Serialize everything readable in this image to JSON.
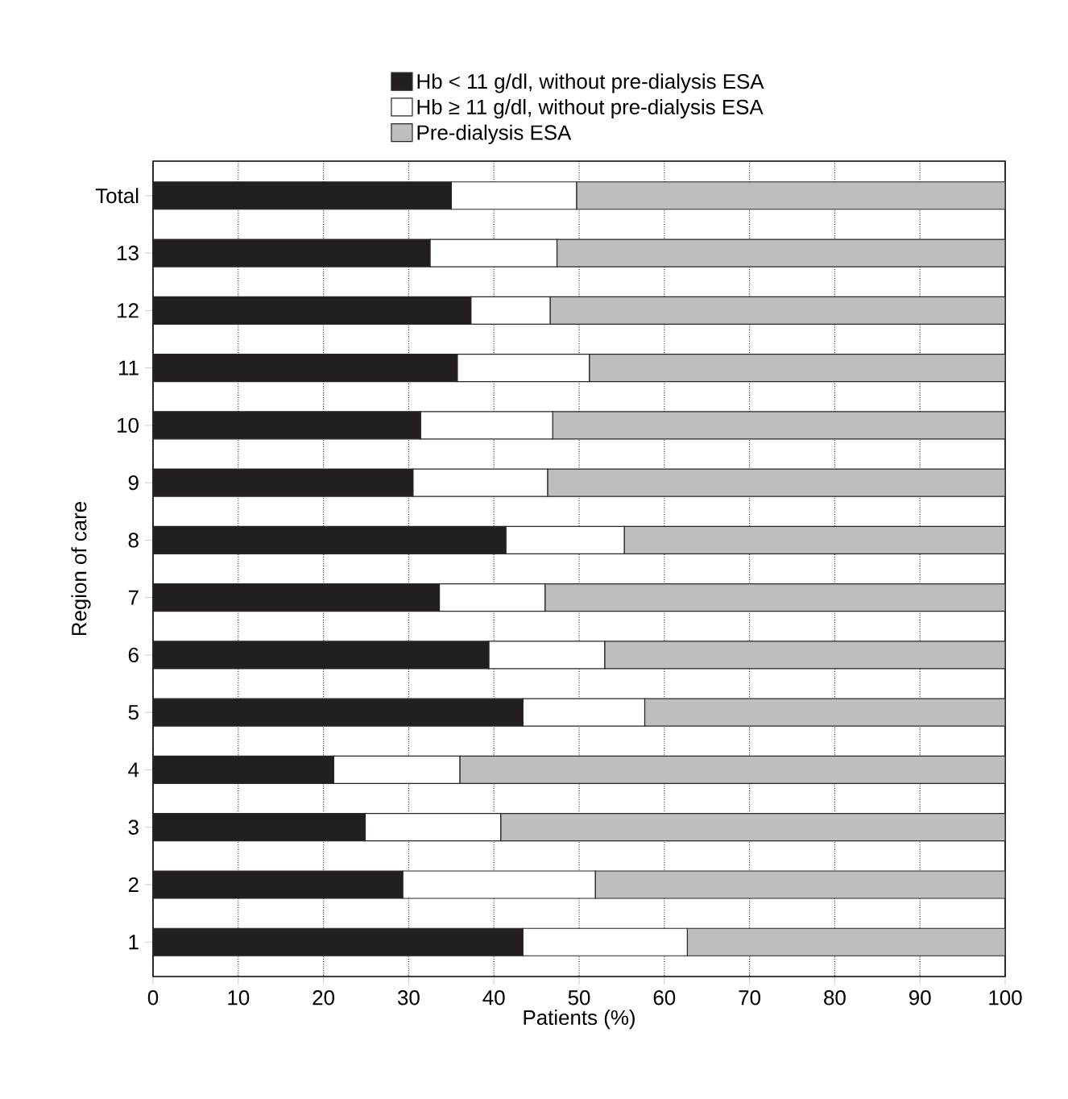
{
  "chart_data": {
    "type": "bar",
    "orientation": "horizontal",
    "stacked": true,
    "xlabel": "Patients (%)",
    "ylabel": "Region of care",
    "categories": [
      "Total",
      "13",
      "12",
      "11",
      "10",
      "9",
      "8",
      "7",
      "6",
      "5",
      "4",
      "3",
      "2",
      "1"
    ],
    "series": [
      {
        "name": "Hb < 11 g/dl, without pre-dialysis ESA",
        "color": "#231f20",
        "values": [
          35,
          32.5,
          37.3,
          35.7,
          31.4,
          30.5,
          41.4,
          33.6,
          39.4,
          43.4,
          21.2,
          24.9,
          29.3,
          43.4
        ]
      },
      {
        "name": "Hb ≥ 11 g/dl, without pre-dialysis ESA",
        "color": "#ffffff",
        "values": [
          14.7,
          14.9,
          9.3,
          15.5,
          15.5,
          15.8,
          13.9,
          12.4,
          13.6,
          14.3,
          14.8,
          15.9,
          22.6,
          19.3
        ]
      },
      {
        "name": "Pre-dialysis ESA",
        "color": "#bcbec0",
        "values": [
          50.3,
          52.6,
          53.4,
          48.8,
          53.1,
          53.7,
          44.7,
          54.0,
          47.0,
          42.3,
          64.0,
          59.2,
          48.1,
          37.3
        ]
      }
    ],
    "xlim": [
      0,
      100
    ],
    "xticks": [
      0,
      10,
      20,
      30,
      40,
      50,
      60,
      70,
      80,
      90,
      100
    ],
    "grid": "x",
    "legend": "top"
  }
}
